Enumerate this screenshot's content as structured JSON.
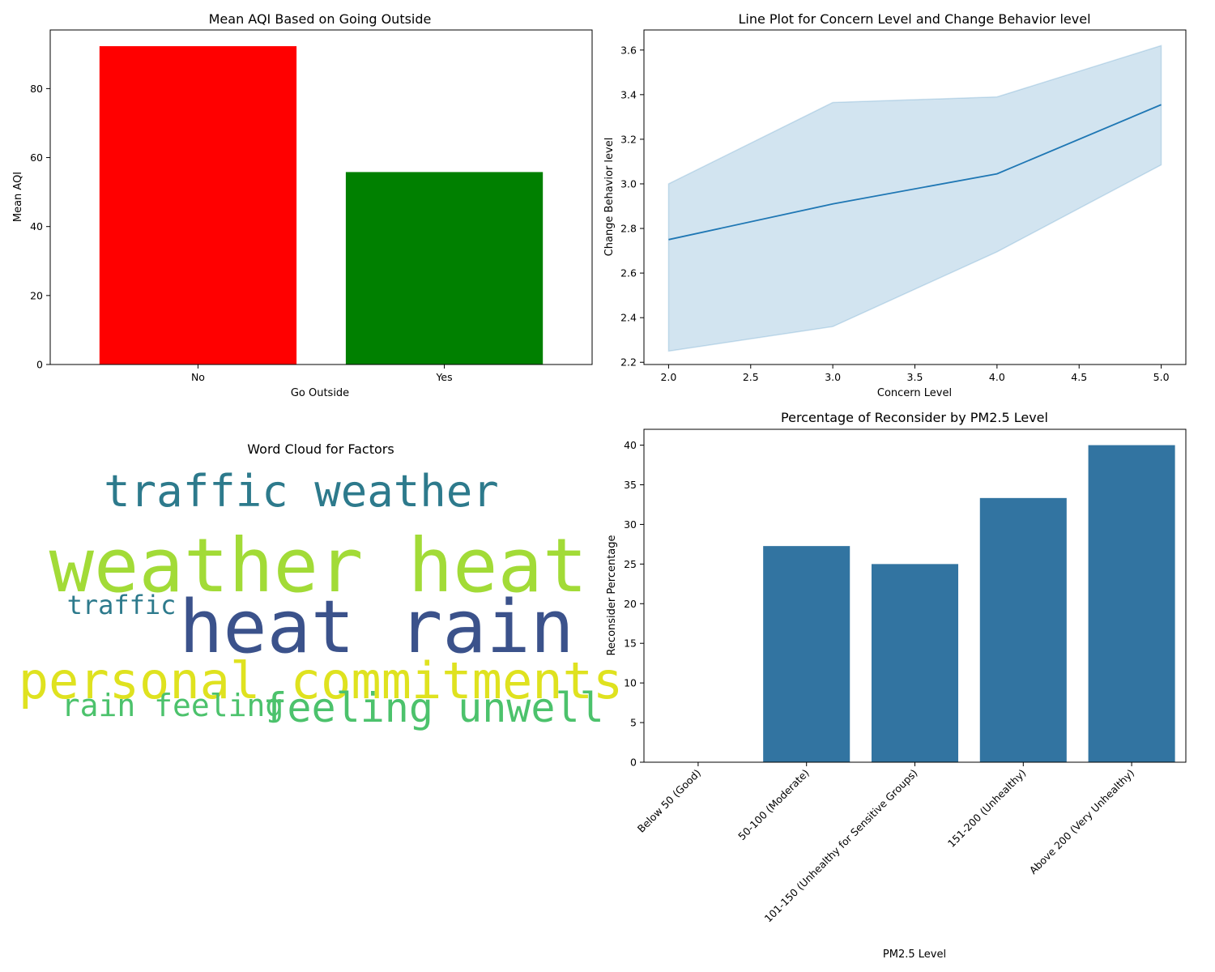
{
  "chart_data": [
    {
      "type": "bar",
      "title": "Mean AQI Based on Going Outside",
      "xlabel": "Go Outside",
      "ylabel": "Mean AQI",
      "categories": [
        "No",
        "Yes"
      ],
      "values": [
        92.3,
        55.8
      ],
      "colors": [
        "#ff0000",
        "#008000"
      ],
      "ylim": [
        0,
        97
      ],
      "yticks": [
        0,
        20,
        40,
        60,
        80
      ],
      "grid": false
    },
    {
      "type": "line",
      "title": "Line Plot for Concern Level and Change Behavior level",
      "xlabel": "Concern Level",
      "ylabel": "Change Behavior level",
      "x": [
        2.0,
        3.0,
        4.0,
        5.0
      ],
      "y": [
        2.75,
        2.91,
        3.045,
        3.355
      ],
      "ci_lower": [
        2.25,
        2.36,
        2.695,
        3.085
      ],
      "ci_upper": [
        3.0,
        3.365,
        3.39,
        3.62
      ],
      "xlim": [
        1.85,
        5.15
      ],
      "ylim": [
        2.19,
        3.69
      ],
      "xticks": [
        2.0,
        2.5,
        3.0,
        3.5,
        4.0,
        4.5,
        5.0
      ],
      "yticks": [
        2.2,
        2.4,
        2.6,
        2.8,
        3.0,
        3.2,
        3.4,
        3.6
      ],
      "color": "#1f77b4",
      "grid": false
    },
    {
      "type": "wordcloud",
      "title": "Word Cloud for Factors",
      "words": [
        {
          "text": "traffic weather",
          "color": "#2d7a8c"
        },
        {
          "text": "weather heat",
          "color": "#a2db37"
        },
        {
          "text": "traffic",
          "color": "#2d7a8c"
        },
        {
          "text": "heat rain",
          "color": "#3b528b"
        },
        {
          "text": "personal commitments",
          "color": "#dfe21f"
        },
        {
          "text": "rain feeling",
          "color": "#4cc26c"
        },
        {
          "text": "feeling unwell",
          "color": "#4cc26c"
        }
      ]
    },
    {
      "type": "bar",
      "title": "Percentage of Reconsider by PM2.5 Level",
      "xlabel": "PM2.5 Level",
      "ylabel": "Reconsider Percentage",
      "categories": [
        "Below 50 (Good)",
        "50-100 (Moderate)",
        "101-150 (Unhealthy for Sensitive Groups)",
        "151-200 (Unhealthy)",
        "Above 200 (Very Unhealthy)"
      ],
      "values": [
        0,
        27.27,
        25.0,
        33.33,
        40.0
      ],
      "color": "#3274a1",
      "ylim": [
        0,
        42
      ],
      "yticks": [
        0,
        5,
        10,
        15,
        20,
        25,
        30,
        35,
        40
      ],
      "grid": false
    }
  ]
}
